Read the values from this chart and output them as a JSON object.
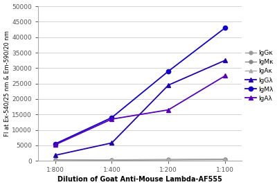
{
  "x_positions": [
    1,
    2,
    3,
    4
  ],
  "x_labels": [
    "1:800",
    "1:400",
    "1:200",
    "1:100"
  ],
  "series": {
    "IgGκ": {
      "values": [
        200,
        200,
        300,
        400
      ],
      "color": "#999999",
      "marker": "o",
      "markersize": 3.5,
      "linewidth": 1.0,
      "linestyle": "-"
    },
    "IgMκ": {
      "values": [
        300,
        300,
        400,
        500
      ],
      "color": "#888888",
      "marker": "o",
      "markersize": 3.5,
      "linewidth": 1.0,
      "linestyle": "-"
    },
    "IgAκ": {
      "values": [
        250,
        350,
        450,
        600
      ],
      "color": "#aaaaaa",
      "marker": "^",
      "markersize": 3.5,
      "linewidth": 1.0,
      "linestyle": "-"
    },
    "IgGλ": {
      "values": [
        1800,
        5800,
        24500,
        32500
      ],
      "color": "#2200aa",
      "marker": "^",
      "markersize": 4.5,
      "linewidth": 1.3,
      "linestyle": "-"
    },
    "IgMλ": {
      "values": [
        5500,
        14000,
        29000,
        43000
      ],
      "color": "#1100cc",
      "marker": "o",
      "markersize": 4.5,
      "linewidth": 1.3,
      "linestyle": "-"
    },
    "IgAλ": {
      "values": [
        5200,
        13500,
        16500,
        27500
      ],
      "color": "#5500bb",
      "marker": "^",
      "markersize": 4.5,
      "linewidth": 1.3,
      "linestyle": "-"
    }
  },
  "ylabel": "FI at Ex-540/25 nm & Em-590/20 nm",
  "xlabel": "Dilution of Goat Anti-Mouse Lambda-AF555",
  "ylim": [
    0,
    50000
  ],
  "yticks": [
    0,
    5000,
    10000,
    15000,
    20000,
    25000,
    30000,
    35000,
    40000,
    45000,
    50000
  ],
  "background_color": "#ffffff",
  "grid_color": "#cccccc"
}
